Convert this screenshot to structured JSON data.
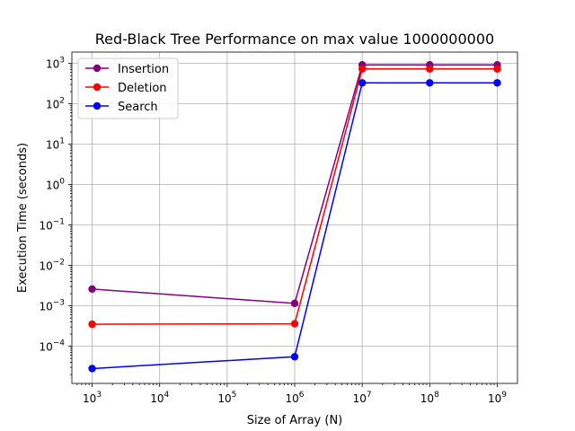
{
  "chart_data": {
    "type": "line",
    "title": "Red-Black Tree Performance on max value 1000000000",
    "xlabel": "Size of Array (N)",
    "ylabel": "Execution Time (seconds)",
    "xscale": "log",
    "yscale": "log",
    "grid": true,
    "legend_position": "top-left",
    "x": [
      1000,
      1000000,
      10000000,
      100000000,
      1000000000
    ],
    "series": [
      {
        "name": "Insertion",
        "color": "#800080",
        "values": [
          0.0026,
          0.00115,
          920,
          920,
          920
        ]
      },
      {
        "name": "Deletion",
        "color": "#ff0000",
        "values": [
          0.00035,
          0.00036,
          730,
          730,
          730
        ]
      },
      {
        "name": "Search",
        "color": "#0000ff",
        "values": [
          2.8e-05,
          5.5e-05,
          330,
          330,
          330
        ]
      }
    ],
    "x_ticks": [
      {
        "base": "10",
        "exp": "3",
        "value": 1000
      },
      {
        "base": "10",
        "exp": "4",
        "value": 10000
      },
      {
        "base": "10",
        "exp": "5",
        "value": 100000
      },
      {
        "base": "10",
        "exp": "6",
        "value": 1000000
      },
      {
        "base": "10",
        "exp": "7",
        "value": 10000000
      },
      {
        "base": "10",
        "exp": "8",
        "value": 100000000
      },
      {
        "base": "10",
        "exp": "9",
        "value": 1000000000
      }
    ],
    "y_ticks": [
      {
        "base": "10",
        "exp": "−4",
        "value": 0.0001
      },
      {
        "base": "10",
        "exp": "−3",
        "value": 0.001
      },
      {
        "base": "10",
        "exp": "−2",
        "value": 0.01
      },
      {
        "base": "10",
        "exp": "−1",
        "value": 0.1
      },
      {
        "base": "10",
        "exp": "0",
        "value": 1
      },
      {
        "base": "10",
        "exp": "1",
        "value": 10
      },
      {
        "base": "10",
        "exp": "2",
        "value": 100
      },
      {
        "base": "10",
        "exp": "3",
        "value": 1000
      }
    ]
  }
}
